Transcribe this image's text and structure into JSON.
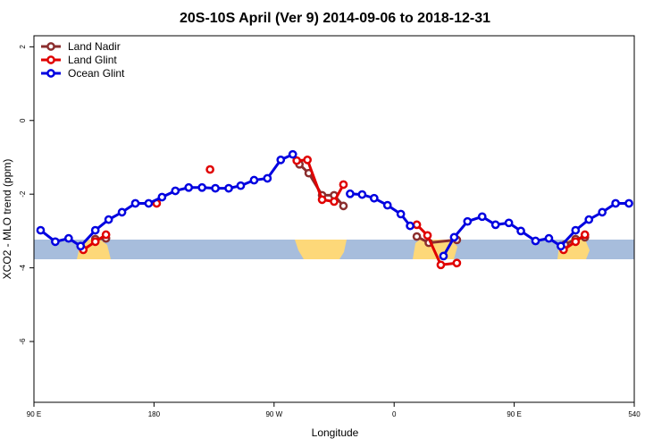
{
  "chart_data": {
    "type": "line",
    "title": "20S-10S April (Ver 9)   2014-09-06 to 2018-12-31",
    "x_label": "Longitude",
    "y_label": "XCO2 - MLO trend (ppm)",
    "xlim": [
      90,
      540
    ],
    "ylim": [
      -7.65,
      2.3
    ],
    "xticks": [
      {
        "value": 90,
        "label": "90 E"
      },
      180,
      {
        "value": 270,
        "label": "90 W"
      },
      {
        "value": 360,
        "label": "0"
      },
      {
        "value": 450,
        "label": "90 E"
      },
      540
    ],
    "yticks": [
      2,
      0,
      -2,
      -4,
      -6
    ],
    "legend": "top-left",
    "series": [
      {
        "name": "Land Nadir",
        "color": "#8b2e2e",
        "x": [
          136,
          144,
          null,
          289,
          296,
          306,
          315,
          322,
          null,
          377,
          386,
          407,
          null,
          488,
          496,
          503
        ],
        "values": [
          -3.22,
          -3.2,
          null,
          -1.19,
          -1.43,
          -2.03,
          -2.03,
          -2.32,
          null,
          -3.15,
          -3.32,
          -3.24,
          null,
          -3.37,
          -3.22,
          -3.17
        ]
      },
      {
        "name": "Land Glint",
        "color": "#e00000",
        "x": [
          127,
          136,
          144,
          null,
          182,
          null,
          222,
          null,
          287,
          295,
          306,
          315,
          322,
          null,
          377,
          385,
          395,
          407,
          null,
          487,
          496,
          503
        ],
        "values": [
          -3.51,
          -3.29,
          -3.1,
          null,
          -2.25,
          null,
          -1.33,
          null,
          -1.09,
          -1.07,
          -2.15,
          -2.2,
          -1.74,
          null,
          -2.83,
          -3.12,
          -3.92,
          -3.87,
          null,
          -3.51,
          -3.29,
          -3.1
        ]
      },
      {
        "name": "Ocean Glint",
        "color": "#0000e0",
        "x": [
          95,
          106,
          116,
          125,
          136,
          146,
          156,
          166,
          176,
          186,
          196,
          206,
          216,
          226,
          236,
          245,
          255,
          265,
          275,
          284,
          null,
          327,
          336,
          345,
          355,
          365,
          372,
          null,
          397,
          405,
          415,
          426,
          436,
          446,
          455,
          466,
          476,
          485,
          496,
          506,
          516,
          526,
          536
        ],
        "values": [
          -2.98,
          -3.29,
          -3.2,
          -3.41,
          -2.98,
          -2.69,
          -2.49,
          -2.25,
          -2.25,
          -2.08,
          -1.91,
          -1.82,
          -1.82,
          -1.84,
          -1.84,
          -1.77,
          -1.62,
          -1.57,
          -1.07,
          -0.92,
          null,
          -1.99,
          -2.01,
          -2.11,
          -2.3,
          -2.54,
          -2.86,
          null,
          -3.68,
          -3.17,
          -2.74,
          -2.61,
          -2.83,
          -2.78,
          -3.0,
          -3.27,
          -3.2,
          -3.41,
          -2.98,
          -2.69,
          -2.49,
          -2.25,
          -2.25
        ]
      }
    ]
  }
}
